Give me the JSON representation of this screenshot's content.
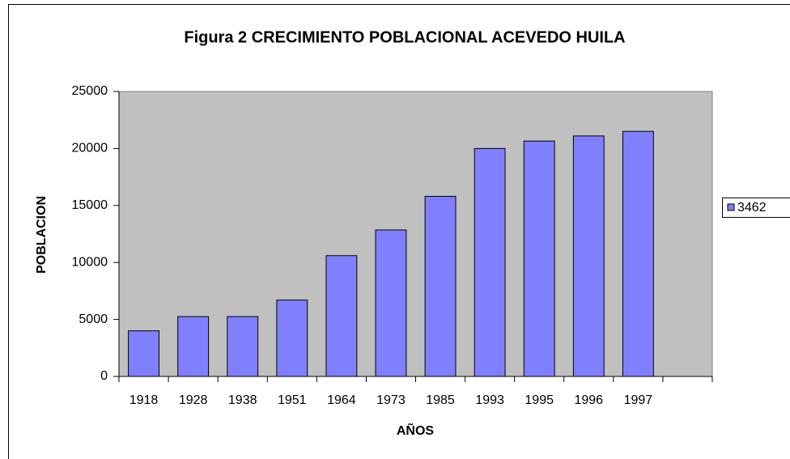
{
  "chart_data": {
    "type": "bar",
    "title": "Figura 2 CRECIMIENTO POBLACIONAL ACEVEDO HUILA",
    "x_label": "AÑOS",
    "y_label": "POBLACION",
    "categories": [
      "1918",
      "1928",
      "1938",
      "1951",
      "1964",
      "1973",
      "1985",
      "1993",
      "1995",
      "1996",
      "1997",
      null
    ],
    "series": [
      {
        "name": "3462",
        "color": "#8080ff",
        "values": [
          4000,
          5250,
          5250,
          6700,
          10600,
          12850,
          15800,
          20000,
          20650,
          21100,
          21500,
          null
        ]
      }
    ],
    "ylim": [
      0,
      25000
    ],
    "yticks": [
      0,
      5000,
      10000,
      15000,
      20000,
      25000
    ],
    "grid": false,
    "legend": "right",
    "plot_background": "#c0c0c0"
  }
}
